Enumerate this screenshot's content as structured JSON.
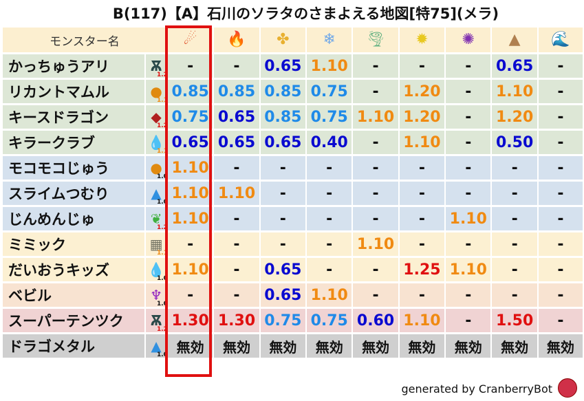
{
  "title": "B(117)【A】石川のソラタのさまよえる地図[特75](メラ)",
  "header": {
    "name_col": "モンスター名",
    "elements": [
      {
        "icon": "mera-fireball-icon",
        "glyph": "☄",
        "color": "#e0502a"
      },
      {
        "icon": "gira-flame-icon",
        "glyph": "🔥",
        "color": "#e85a20"
      },
      {
        "icon": "io-explosion-icon",
        "glyph": "✤",
        "color": "#e8b030"
      },
      {
        "icon": "hyado-snowflake-icon",
        "glyph": "❄",
        "color": "#70a8e8"
      },
      {
        "icon": "bagi-tornado-icon",
        "glyph": "🌪",
        "color": "#60b080"
      },
      {
        "icon": "dein-lightning-icon",
        "glyph": "✹",
        "color": "#e8c820"
      },
      {
        "icon": "doruma-dark-icon",
        "glyph": "✺",
        "color": "#8030b0"
      },
      {
        "icon": "jibaria-rock-icon",
        "glyph": "▲",
        "color": "#b08050"
      },
      {
        "icon": "water-wave-icon",
        "glyph": "🌊",
        "color": "#3070d0"
      }
    ]
  },
  "rows": [
    {
      "name": "かっちゅうアリ",
      "icon": "insect-icon",
      "glyph": "Ѫ",
      "icolor": "#2a4a4a",
      "mult": "1.2",
      "mc": "m12",
      "bg": "g",
      "values": [
        [
          "-",
          "none"
        ],
        [
          "-",
          "none"
        ],
        [
          "0.65",
          "dark"
        ],
        [
          "1.10",
          "orange"
        ],
        [
          "-",
          "none"
        ],
        [
          "-",
          "none"
        ],
        [
          "-",
          "none"
        ],
        [
          "0.65",
          "dark"
        ],
        [
          "-",
          "none"
        ]
      ]
    },
    {
      "name": "リカントマムル",
      "icon": "beast-paw-icon",
      "glyph": "●",
      "icolor": "#e08a10",
      "mult": "1.1",
      "mc": "m11",
      "bg": "g",
      "values": [
        [
          "0.85",
          "light"
        ],
        [
          "0.85",
          "light"
        ],
        [
          "0.85",
          "light"
        ],
        [
          "0.75",
          "light"
        ],
        [
          "-",
          "none"
        ],
        [
          "1.20",
          "orange"
        ],
        [
          "-",
          "none"
        ],
        [
          "1.10",
          "orange"
        ],
        [
          "-",
          "none"
        ]
      ]
    },
    {
      "name": "キースドラゴン",
      "icon": "dragon-icon",
      "glyph": "◆",
      "icolor": "#b02020",
      "mult": "1.2",
      "mc": "m12",
      "bg": "g",
      "values": [
        [
          "0.75",
          "light"
        ],
        [
          "0.65",
          "dark"
        ],
        [
          "0.85",
          "light"
        ],
        [
          "0.75",
          "light"
        ],
        [
          "1.10",
          "orange"
        ],
        [
          "1.20",
          "orange"
        ],
        [
          "-",
          "none"
        ],
        [
          "1.20",
          "orange"
        ],
        [
          "-",
          "none"
        ]
      ]
    },
    {
      "name": "キラークラブ",
      "icon": "water-drop-icon",
      "glyph": "💧",
      "icolor": "#3090e0",
      "mult": "1.1",
      "mc": "m11",
      "bg": "g",
      "values": [
        [
          "0.65",
          "dark"
        ],
        [
          "0.65",
          "dark"
        ],
        [
          "0.65",
          "dark"
        ],
        [
          "0.40",
          "dark"
        ],
        [
          "-",
          "none"
        ],
        [
          "1.10",
          "orange"
        ],
        [
          "-",
          "none"
        ],
        [
          "0.50",
          "dark"
        ],
        [
          "-",
          "none"
        ]
      ]
    },
    {
      "name": "モコモコじゅう",
      "icon": "beast-paw-icon",
      "glyph": "●",
      "icolor": "#e08a10",
      "mult": "1.0",
      "mc": "m10",
      "bg": "b",
      "values": [
        [
          "1.10",
          "orange"
        ],
        [
          "-",
          "none"
        ],
        [
          "-",
          "none"
        ],
        [
          "-",
          "none"
        ],
        [
          "-",
          "none"
        ],
        [
          "-",
          "none"
        ],
        [
          "-",
          "none"
        ],
        [
          "-",
          "none"
        ],
        [
          "-",
          "none"
        ]
      ]
    },
    {
      "name": "スライムつむり",
      "icon": "slime-icon",
      "glyph": "▲",
      "icolor": "#3090e0",
      "mult": "1.0",
      "mc": "m10",
      "bg": "b",
      "values": [
        [
          "1.10",
          "orange"
        ],
        [
          "1.10",
          "orange"
        ],
        [
          "-",
          "none"
        ],
        [
          "-",
          "none"
        ],
        [
          "-",
          "none"
        ],
        [
          "-",
          "none"
        ],
        [
          "-",
          "none"
        ],
        [
          "-",
          "none"
        ],
        [
          "-",
          "none"
        ]
      ]
    },
    {
      "name": "じんめんじゅ",
      "icon": "leaf-icon",
      "glyph": "❦",
      "icolor": "#40b040",
      "mult": "1.2",
      "mc": "m12",
      "bg": "b",
      "values": [
        [
          "1.10",
          "orange"
        ],
        [
          "-",
          "none"
        ],
        [
          "-",
          "none"
        ],
        [
          "-",
          "none"
        ],
        [
          "-",
          "none"
        ],
        [
          "-",
          "none"
        ],
        [
          "1.10",
          "orange"
        ],
        [
          "-",
          "none"
        ],
        [
          "-",
          "none"
        ]
      ]
    },
    {
      "name": "ミミック",
      "icon": "brick-wall-icon",
      "glyph": "▦",
      "icolor": "#707060",
      "mult": "1.1",
      "mc": "m11",
      "bg": "y",
      "values": [
        [
          "-",
          "none"
        ],
        [
          "-",
          "none"
        ],
        [
          "-",
          "none"
        ],
        [
          "-",
          "none"
        ],
        [
          "1.10",
          "orange"
        ],
        [
          "-",
          "none"
        ],
        [
          "-",
          "none"
        ],
        [
          "-",
          "none"
        ],
        [
          "-",
          "none"
        ]
      ]
    },
    {
      "name": "だいおうキッズ",
      "icon": "water-drop-icon",
      "glyph": "💧",
      "icolor": "#3090e0",
      "mult": "1.0",
      "mc": "m10",
      "bg": "y",
      "values": [
        [
          "1.10",
          "orange"
        ],
        [
          "-",
          "none"
        ],
        [
          "0.65",
          "dark"
        ],
        [
          "-",
          "none"
        ],
        [
          "-",
          "none"
        ],
        [
          "1.25",
          "red"
        ],
        [
          "1.10",
          "orange"
        ],
        [
          "-",
          "none"
        ],
        [
          "-",
          "none"
        ]
      ]
    },
    {
      "name": "ベビル",
      "icon": "devil-trident-icon",
      "glyph": "♆",
      "icolor": "#9020c0",
      "mult": "1.0",
      "mc": "m10",
      "bg": "p",
      "values": [
        [
          "-",
          "none"
        ],
        [
          "-",
          "none"
        ],
        [
          "0.65",
          "dark"
        ],
        [
          "1.10",
          "orange"
        ],
        [
          "-",
          "none"
        ],
        [
          "-",
          "none"
        ],
        [
          "-",
          "none"
        ],
        [
          "-",
          "none"
        ],
        [
          "-",
          "none"
        ]
      ]
    },
    {
      "name": "スーパーテンツク",
      "icon": "insect-icon",
      "glyph": "Ѫ",
      "icolor": "#2a4a4a",
      "mult": "1.2",
      "mc": "m12",
      "bg": "r",
      "values": [
        [
          "1.30",
          "red"
        ],
        [
          "1.30",
          "red"
        ],
        [
          "0.75",
          "light"
        ],
        [
          "0.75",
          "light"
        ],
        [
          "0.60",
          "dark"
        ],
        [
          "1.10",
          "orange"
        ],
        [
          "-",
          "none"
        ],
        [
          "1.50",
          "red"
        ],
        [
          "-",
          "none"
        ]
      ]
    },
    {
      "name": "ドラゴメタル",
      "icon": "slime-icon",
      "glyph": "▲",
      "icolor": "#3090e0",
      "mult": "1.0",
      "mc": "m10",
      "bg": "k",
      "values": [
        [
          "無効",
          "inv"
        ],
        [
          "無効",
          "inv"
        ],
        [
          "無効",
          "inv"
        ],
        [
          "無効",
          "inv"
        ],
        [
          "無効",
          "inv"
        ],
        [
          "無効",
          "inv"
        ],
        [
          "無効",
          "inv"
        ],
        [
          "無効",
          "inv"
        ],
        [
          "無効",
          "inv"
        ]
      ]
    }
  ],
  "footer": "generated by CranberryBot",
  "highlight_color": "#e01010"
}
